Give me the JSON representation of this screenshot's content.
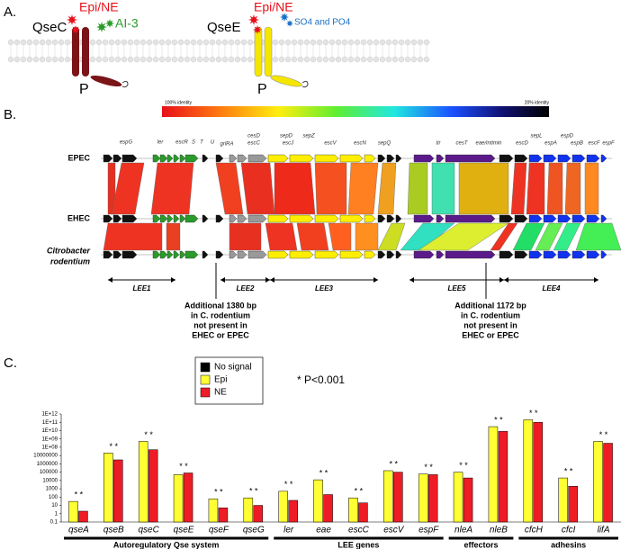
{
  "panel_a": {
    "label": "A.",
    "qsec": {
      "name": "QseC",
      "signal": "Epi/NE",
      "ligand": "AI-3",
      "phospho": "P"
    },
    "qsee": {
      "name": "QseE",
      "signal": "Epi/NE",
      "ligand": "SO4 and PO4",
      "phospho": "P"
    }
  },
  "panel_b": {
    "label": "B.",
    "scale_min_label": "100% identity",
    "scale_max_label": "20% identity",
    "strains": [
      "EPEC",
      "EHEC"
    ],
    "species_lines": [
      "Citrobacter",
      "rodentium"
    ],
    "genes": [
      "espG",
      "ler",
      "escR",
      "S",
      "T",
      "U",
      "grlRA",
      "cesD",
      "escC",
      "sepD",
      "escJ",
      "sepZ",
      "escV",
      "escN",
      "sepQ",
      "tir",
      "cesT",
      "eae/intimin",
      "escD",
      "sepL",
      "espA",
      "espD",
      "espB",
      "escF",
      "espF"
    ],
    "operons": [
      "LEE1",
      "LEE2",
      "LEE3",
      "LEE5",
      "LEE4"
    ],
    "notes": [
      [
        "Additional 1380 bp",
        "in C. rodentium",
        "not present in",
        "EHEC or EPEC"
      ],
      [
        "Additional 1172 bp",
        "in C. rodentium",
        "not present in",
        "EHEC or EPEC"
      ]
    ]
  },
  "chart_data": {
    "type": "bar",
    "label": "C.",
    "log_scale": true,
    "legend": "upper left",
    "note": "* P<0.001",
    "categories": [
      "qseA",
      "qseB",
      "qseC",
      "qseE",
      "qseF",
      "qseG",
      "ler",
      "eae",
      "escC",
      "escV",
      "espF",
      "nleA",
      "nleB",
      "cfcH",
      "cfcI",
      "lifA"
    ],
    "series": [
      {
        "name": "No signal",
        "color": "#000000",
        "values": [
          null,
          null,
          null,
          null,
          null,
          null,
          null,
          null,
          null,
          null,
          null,
          null,
          null,
          null,
          null,
          null
        ]
      },
      {
        "name": "Epi",
        "color": "#ffff33",
        "values": [
          30,
          20000000,
          500000000,
          50000,
          60,
          80,
          500,
          12000,
          80,
          150000,
          60000,
          100000,
          30000000000,
          200000000000,
          20000,
          500000000
        ]
      },
      {
        "name": "NE",
        "color": "#ee1c25",
        "values": [
          2,
          3000000,
          50000000,
          80000,
          5,
          10,
          40,
          200,
          20,
          100000,
          50000,
          20000,
          8000000000,
          100000000000,
          2000,
          300000000
        ]
      }
    ],
    "significance": [
      "* *",
      "* *",
      "* *",
      "* *",
      "* *",
      "* *",
      "* *",
      "* *",
      "* *",
      "* *",
      "* *",
      "* *",
      "* *",
      "* *",
      "* *",
      "* *"
    ],
    "groups": [
      {
        "label": "Autoregulatory Qse system",
        "size": 6
      },
      {
        "label": "LEE genes",
        "size": 5
      },
      {
        "label": "effectors",
        "size": 2
      },
      {
        "label": "adhesins",
        "size": 3
      }
    ],
    "ylim": [
      0.1,
      1000000000000
    ],
    "yticks": [
      0.1,
      1,
      10,
      100,
      1000,
      10000,
      100000,
      1000000,
      10000000,
      {
        "value": 100000000,
        "label": "1E+08"
      },
      {
        "value": 1000000000,
        "label": "1E+09"
      },
      {
        "value": 10000000000,
        "label": "1E+10"
      },
      {
        "value": 100000000000,
        "label": "1E+11"
      },
      {
        "value": 1000000000000,
        "label": "1E+12"
      }
    ]
  }
}
